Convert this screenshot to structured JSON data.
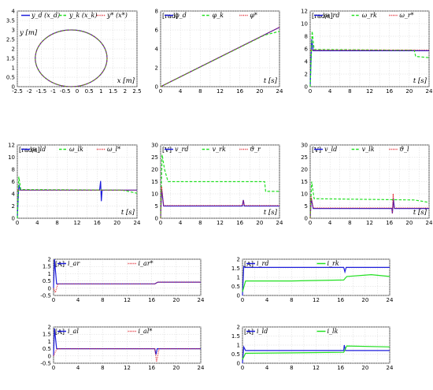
{
  "colors": {
    "desired": "#1f1fdc",
    "measured": "#22e022",
    "reference": "#e0202a"
  },
  "chart_data": [
    {
      "id": "xy",
      "type": "line",
      "ylabel": "y [m]",
      "xlabel": "x [m]",
      "xlim": [
        -2.5,
        2.5
      ],
      "ylim": [
        0,
        4
      ],
      "xticks": [
        -2.5,
        -2,
        -1.5,
        -1,
        -0.5,
        0,
        0.5,
        1,
        1.5,
        2,
        2.5
      ],
      "yticks": [
        0,
        0.5,
        1,
        1.5,
        2,
        2.5,
        3,
        3.5,
        4
      ],
      "legend": [
        "y_d (x_d)",
        "y_k (x_k)",
        "y* (x*)"
      ],
      "circle": {
        "cx": -0.25,
        "cy": 1.5,
        "r": 1.5
      }
    },
    {
      "id": "phi",
      "type": "line",
      "unit": "[rad]",
      "xlabel": "t [s]",
      "xlim": [
        0,
        24
      ],
      "ylim": [
        0,
        8
      ],
      "xticks": [
        0,
        2,
        4,
        6,
        8,
        10,
        12,
        14,
        16,
        18,
        20,
        22,
        24
      ],
      "yticks": [
        0,
        2,
        4,
        6,
        8
      ],
      "legend": [
        "φ_d",
        "φ_k",
        "φ*"
      ],
      "series": [
        {
          "name": "φ_d",
          "color": "desired",
          "dash": "solid",
          "points": [
            [
              0,
              0
            ],
            [
              24,
              6.28
            ]
          ]
        },
        {
          "name": "φ_k",
          "color": "measured",
          "dash": "dashed",
          "points": [
            [
              0,
              0
            ],
            [
              20,
              5.2
            ],
            [
              21,
              5.45
            ],
            [
              24,
              5.85
            ]
          ]
        },
        {
          "name": "φ*",
          "color": "reference",
          "dash": "dotted",
          "points": [
            [
              0,
              0
            ],
            [
              24,
              6.28
            ]
          ]
        }
      ]
    },
    {
      "id": "wr",
      "type": "line",
      "unit": "[rad/s]",
      "xlabel": "t [s]",
      "xlim": [
        0,
        24
      ],
      "ylim": [
        0,
        12
      ],
      "xticks": [
        0,
        2,
        4,
        6,
        8,
        10,
        12,
        14,
        16,
        18,
        20,
        22,
        24
      ],
      "yticks": [
        0,
        2,
        4,
        6,
        8,
        10,
        12
      ],
      "legend": [
        "ω_rd",
        "ω_rk",
        "ω_r*"
      ],
      "series": [
        {
          "name": "ω_rd",
          "color": "desired",
          "dash": "solid",
          "points": [
            [
              0,
              0
            ],
            [
              0.3,
              7.5
            ],
            [
              0.6,
              5.7
            ],
            [
              24,
              5.7
            ]
          ]
        },
        {
          "name": "ω_rk",
          "color": "measured",
          "dash": "dashed",
          "points": [
            [
              0,
              0
            ],
            [
              0.4,
              8.8
            ],
            [
              0.8,
              5.9
            ],
            [
              16,
              5.8
            ],
            [
              21,
              5.8
            ],
            [
              21.3,
              4.8
            ],
            [
              24,
              4.6
            ]
          ]
        },
        {
          "name": "ω_r*",
          "color": "reference",
          "dash": "dotted",
          "points": [
            [
              0,
              5.8
            ],
            [
              24,
              5.8
            ]
          ]
        }
      ]
    },
    {
      "id": "wl",
      "type": "line",
      "unit": "[rad/s]",
      "xlabel": "t [s]",
      "xlim": [
        0,
        24
      ],
      "ylim": [
        0,
        12
      ],
      "xticks": [
        0,
        2,
        4,
        6,
        8,
        10,
        12,
        14,
        16,
        18,
        20,
        22,
        24
      ],
      "yticks": [
        0,
        2,
        4,
        6,
        8,
        10,
        12
      ],
      "legend": [
        "ω_ld",
        "ω_lk",
        "ω_l*"
      ],
      "series": [
        {
          "name": "ω_ld",
          "color": "desired",
          "dash": "solid",
          "points": [
            [
              0,
              0
            ],
            [
              0.3,
              5.5
            ],
            [
              0.6,
              4.6
            ],
            [
              16.5,
              4.6
            ],
            [
              16.7,
              6.1
            ],
            [
              16.85,
              2.8
            ],
            [
              17.0,
              4.6
            ],
            [
              24,
              4.6
            ]
          ]
        },
        {
          "name": "ω_lk",
          "color": "measured",
          "dash": "dashed",
          "points": [
            [
              0,
              0
            ],
            [
              0.3,
              6.8
            ],
            [
              0.7,
              4.7
            ],
            [
              21,
              4.6
            ],
            [
              24,
              4.1
            ]
          ]
        },
        {
          "name": "ω_l*",
          "color": "reference",
          "dash": "dotted",
          "points": [
            [
              0,
              4.6
            ],
            [
              24,
              4.6
            ]
          ]
        }
      ]
    },
    {
      "id": "vr",
      "type": "line",
      "unit": "[V]",
      "xlabel": "t [s]",
      "xlim": [
        0,
        24
      ],
      "ylim": [
        0,
        30
      ],
      "xticks": [
        0,
        2,
        4,
        6,
        8,
        10,
        12,
        14,
        16,
        18,
        20,
        22,
        24
      ],
      "yticks": [
        0,
        5,
        10,
        15,
        20,
        25,
        30
      ],
      "legend": [
        "v_rd",
        "v_rk",
        "ϑ_r"
      ],
      "series": [
        {
          "name": "v_rd",
          "color": "desired",
          "dash": "solid",
          "points": [
            [
              0,
              0
            ],
            [
              0.2,
              12
            ],
            [
              0.6,
              5
            ],
            [
              16.5,
              5
            ],
            [
              16.7,
              7.5
            ],
            [
              16.9,
              5
            ],
            [
              24,
              5
            ]
          ]
        },
        {
          "name": "v_rk",
          "color": "measured",
          "dash": "dashed",
          "points": [
            [
              0,
              0
            ],
            [
              0.3,
              26
            ],
            [
              0.8,
              20
            ],
            [
              1.5,
              15
            ],
            [
              21,
              15
            ],
            [
              21.2,
              11
            ],
            [
              24,
              11
            ]
          ]
        },
        {
          "name": "ϑ_r",
          "color": "reference",
          "dash": "dotted",
          "points": [
            [
              0,
              0
            ],
            [
              0.2,
              13
            ],
            [
              0.6,
              5.2
            ],
            [
              16.5,
              5.2
            ],
            [
              16.7,
              7.5
            ],
            [
              16.9,
              5.2
            ],
            [
              24,
              5.2
            ]
          ]
        }
      ]
    },
    {
      "id": "vl",
      "type": "line",
      "unit": "[V]",
      "xlabel": "t [s]",
      "xlim": [
        0,
        24
      ],
      "ylim": [
        0,
        30
      ],
      "xticks": [
        0,
        2,
        4,
        6,
        8,
        10,
        12,
        14,
        16,
        18,
        20,
        22,
        24
      ],
      "yticks": [
        0,
        5,
        10,
        15,
        20,
        25,
        30
      ],
      "legend": [
        "v_ld",
        "v_lk",
        "ϑ_l"
      ],
      "series": [
        {
          "name": "v_ld",
          "color": "desired",
          "dash": "solid",
          "points": [
            [
              0,
              0
            ],
            [
              0.2,
              8
            ],
            [
              0.6,
              4
            ],
            [
              16.5,
              4
            ],
            [
              16.6,
              2
            ],
            [
              16.8,
              8
            ],
            [
              17,
              4
            ],
            [
              24,
              4
            ]
          ]
        },
        {
          "name": "v_lk",
          "color": "measured",
          "dash": "dashed",
          "points": [
            [
              0,
              0
            ],
            [
              0.3,
              15
            ],
            [
              0.8,
              8
            ],
            [
              21,
              7.5
            ],
            [
              24,
              6.5
            ]
          ]
        },
        {
          "name": "ϑ_l",
          "color": "reference",
          "dash": "dotted",
          "points": [
            [
              0,
              0
            ],
            [
              0.2,
              9
            ],
            [
              0.6,
              4.2
            ],
            [
              16.5,
              4.2
            ],
            [
              16.6,
              2
            ],
            [
              16.75,
              10
            ],
            [
              16.9,
              4.2
            ],
            [
              24,
              4.2
            ]
          ]
        }
      ]
    },
    {
      "id": "iar",
      "type": "line",
      "unit": "[A]",
      "xlim": [
        0,
        24
      ],
      "ylim": [
        -0.5,
        2
      ],
      "xticks": [
        0,
        2,
        4,
        6,
        8,
        10,
        12,
        14,
        16,
        18,
        20,
        22,
        24
      ],
      "yticks": [
        -0.5,
        0,
        0.5,
        1,
        1.5,
        2
      ],
      "legend": [
        "i_ar",
        "i_ar*"
      ],
      "series": [
        {
          "name": "i_ar",
          "color": "desired",
          "dash": "solid",
          "points": [
            [
              0,
              0
            ],
            [
              0.15,
              2
            ],
            [
              0.5,
              0.3
            ],
            [
              16.5,
              0.3
            ],
            [
              17,
              0.42
            ],
            [
              24,
              0.42
            ]
          ]
        },
        {
          "name": "i_ar*",
          "color": "reference",
          "dash": "dotted",
          "points": [
            [
              0,
              0
            ],
            [
              0.3,
              -0.3
            ],
            [
              0.7,
              0.3
            ],
            [
              16.5,
              0.3
            ],
            [
              17,
              0.42
            ],
            [
              24,
              0.42
            ]
          ]
        }
      ]
    },
    {
      "id": "ird",
      "type": "line",
      "unit": "[A]",
      "xlim": [
        0,
        24
      ],
      "ylim": [
        0,
        2
      ],
      "xticks": [
        0,
        2,
        4,
        6,
        8,
        10,
        12,
        14,
        16,
        18,
        20,
        22,
        24
      ],
      "yticks": [
        0,
        0.5,
        1,
        1.5,
        2
      ],
      "legend": [
        "i_rd",
        "i_rk"
      ],
      "series": [
        {
          "name": "i_rd",
          "color": "desired",
          "dash": "solid",
          "points": [
            [
              0,
              0
            ],
            [
              0.2,
              1.6
            ],
            [
              0.4,
              1.55
            ],
            [
              16.5,
              1.55
            ],
            [
              16.7,
              1.3
            ],
            [
              16.9,
              1.55
            ],
            [
              24,
              1.55
            ]
          ]
        },
        {
          "name": "i_rk",
          "color": "measured",
          "dash": "solid",
          "points": [
            [
              0,
              0.2
            ],
            [
              0.5,
              0.8
            ],
            [
              8,
              0.8
            ],
            [
              16.5,
              0.85
            ],
            [
              17,
              1.05
            ],
            [
              21,
              1.15
            ],
            [
              24,
              1.05
            ]
          ]
        }
      ]
    },
    {
      "id": "ial",
      "type": "line",
      "unit": "[A]",
      "xlim": [
        0,
        24
      ],
      "ylim": [
        -0.5,
        2
      ],
      "xticks": [
        0,
        2,
        4,
        6,
        8,
        10,
        12,
        14,
        16,
        18,
        20,
        22,
        24
      ],
      "yticks": [
        -0.5,
        0,
        0.5,
        1,
        1.5,
        2
      ],
      "legend": [
        "i_al",
        "i_al*"
      ],
      "series": [
        {
          "name": "i_al",
          "color": "desired",
          "dash": "solid",
          "points": [
            [
              0,
              0
            ],
            [
              0.15,
              1.9
            ],
            [
              0.5,
              0.5
            ],
            [
              16.5,
              0.5
            ],
            [
              16.7,
              0.1
            ],
            [
              16.9,
              0.5
            ],
            [
              24,
              0.5
            ]
          ]
        },
        {
          "name": "i_al*",
          "color": "reference",
          "dash": "dotted",
          "points": [
            [
              0,
              0
            ],
            [
              0.3,
              0.3
            ],
            [
              0.6,
              0.5
            ],
            [
              16.5,
              0.5
            ],
            [
              16.8,
              -0.4
            ],
            [
              17.2,
              0.5
            ],
            [
              24,
              0.5
            ]
          ]
        }
      ]
    },
    {
      "id": "ild",
      "type": "line",
      "unit": "[A]",
      "xlim": [
        0,
        24
      ],
      "ylim": [
        0,
        2
      ],
      "xticks": [
        0,
        2,
        4,
        6,
        8,
        10,
        12,
        14,
        16,
        18,
        20,
        22,
        24
      ],
      "yticks": [
        0,
        0.5,
        1,
        1.5,
        2
      ],
      "legend": [
        "i_ld",
        "i_lk"
      ],
      "series": [
        {
          "name": "i_ld",
          "color": "desired",
          "dash": "solid",
          "points": [
            [
              0,
              0
            ],
            [
              0.2,
              0.9
            ],
            [
              0.5,
              0.7
            ],
            [
              16.5,
              0.7
            ],
            [
              16.6,
              1.0
            ],
            [
              16.8,
              0.7
            ],
            [
              24,
              0.7
            ]
          ]
        },
        {
          "name": "i_lk",
          "color": "measured",
          "dash": "solid",
          "points": [
            [
              0,
              0.2
            ],
            [
              0.5,
              0.55
            ],
            [
              16.5,
              0.6
            ],
            [
              17,
              0.95
            ],
            [
              24,
              0.9
            ]
          ]
        }
      ]
    }
  ]
}
